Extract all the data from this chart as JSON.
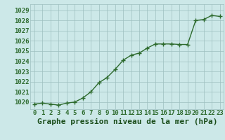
{
  "x": [
    0,
    1,
    2,
    3,
    4,
    5,
    6,
    7,
    8,
    9,
    10,
    11,
    12,
    13,
    14,
    15,
    16,
    17,
    18,
    19,
    20,
    21,
    22,
    23
  ],
  "y": [
    1019.8,
    1019.9,
    1019.8,
    1019.7,
    1019.9,
    1020.0,
    1020.4,
    1021.0,
    1021.9,
    1022.4,
    1023.2,
    1024.1,
    1024.6,
    1024.8,
    1025.3,
    1025.7,
    1025.7,
    1025.7,
    1025.65,
    1025.65,
    1028.0,
    1028.1,
    1028.5,
    1028.4
  ],
  "line_color": "#2d6a2d",
  "marker_color": "#2d6a2d",
  "bg_color": "#cce8e8",
  "grid_color": "#9dbfbf",
  "title": "Graphe pression niveau de la mer (hPa)",
  "title_color": "#1a4d1a",
  "xlabel_ticks": [
    "0",
    "1",
    "2",
    "3",
    "4",
    "5",
    "6",
    "7",
    "8",
    "9",
    "10",
    "11",
    "12",
    "13",
    "14",
    "15",
    "16",
    "17",
    "18",
    "19",
    "20",
    "21",
    "22",
    "23"
  ],
  "ytick_vals": [
    1020,
    1021,
    1022,
    1023,
    1024,
    1025,
    1026,
    1027,
    1028,
    1029
  ],
  "ytick_labels": [
    "1020",
    "1021",
    "1022",
    "1023",
    "1024",
    "1025",
    "1026",
    "1027",
    "1028",
    "1029"
  ],
  "ylim": [
    1019.3,
    1029.6
  ],
  "xlim": [
    -0.5,
    23.5
  ],
  "tick_color": "#2d6a2d",
  "tick_fontsize": 6.5,
  "title_fontsize": 8,
  "linewidth": 1.0,
  "markersize": 2.5
}
